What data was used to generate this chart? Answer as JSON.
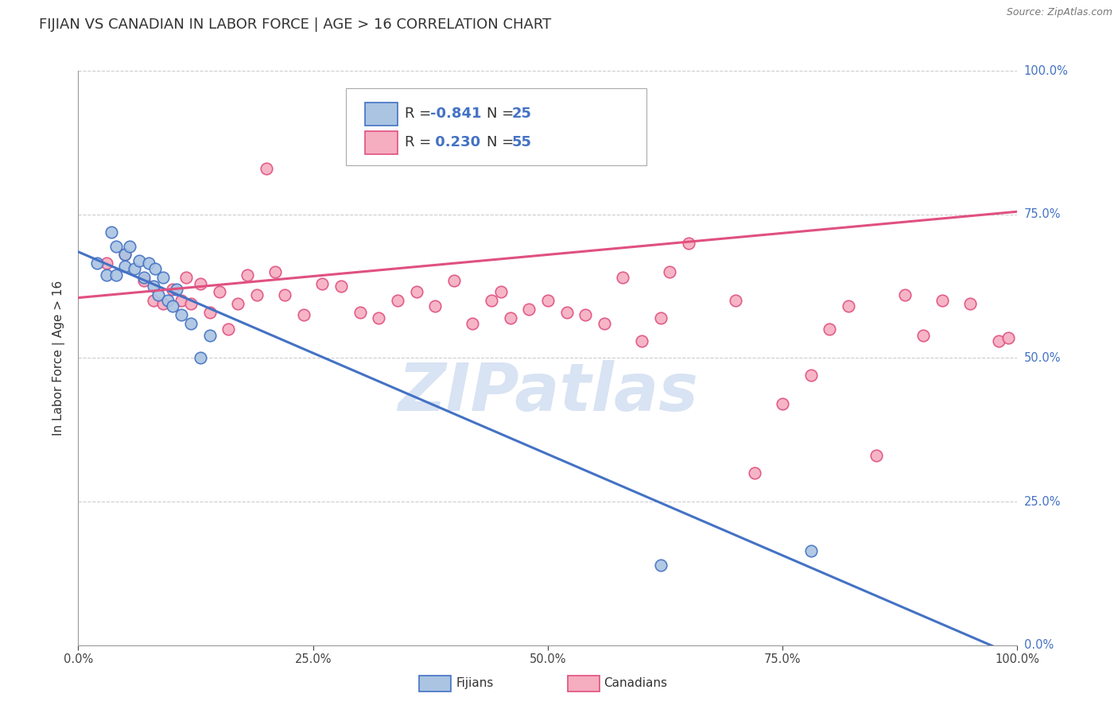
{
  "title": "FIJIAN VS CANADIAN IN LABOR FORCE | AGE > 16 CORRELATION CHART",
  "source_text": "Source: ZipAtlas.com",
  "ylabel": "In Labor Force | Age > 16",
  "watermark": "ZIPatlas",
  "xlim": [
    0.0,
    1.0
  ],
  "ylim": [
    0.0,
    1.0
  ],
  "xticks": [
    0.0,
    0.25,
    0.5,
    0.75,
    1.0
  ],
  "yticks": [
    0.0,
    0.25,
    0.5,
    0.75,
    1.0
  ],
  "ytick_labels_right": [
    "0.0%",
    "25.0%",
    "50.0%",
    "75.0%",
    "100.0%"
  ],
  "xtick_labels": [
    "0.0%",
    "25.0%",
    "50.0%",
    "75.0%",
    "100.0%"
  ],
  "fijian_color": "#aac4e2",
  "canadian_color": "#f5adc0",
  "fijian_line_color": "#4472c4",
  "canadian_line_color": "#e05080",
  "R_fijian": -0.841,
  "N_fijian": 25,
  "R_canadian": 0.23,
  "N_canadian": 55,
  "fijian_label": "Fijians",
  "canadian_label": "Canadians",
  "grid_color": "#cccccc",
  "background_color": "#ffffff",
  "fijian_scatter_x": [
    0.02,
    0.03,
    0.035,
    0.04,
    0.05,
    0.05,
    0.055,
    0.06,
    0.065,
    0.07,
    0.075,
    0.08,
    0.082,
    0.085,
    0.09,
    0.095,
    0.1,
    0.105,
    0.11,
    0.12,
    0.13,
    0.14,
    0.04,
    0.62,
    0.78
  ],
  "fijian_scatter_y": [
    0.665,
    0.645,
    0.72,
    0.695,
    0.68,
    0.66,
    0.695,
    0.655,
    0.67,
    0.64,
    0.665,
    0.625,
    0.655,
    0.61,
    0.64,
    0.6,
    0.59,
    0.62,
    0.575,
    0.56,
    0.5,
    0.54,
    0.645,
    0.14,
    0.165
  ],
  "canadian_scatter_x": [
    0.03,
    0.05,
    0.07,
    0.08,
    0.09,
    0.1,
    0.11,
    0.115,
    0.12,
    0.13,
    0.14,
    0.15,
    0.16,
    0.17,
    0.18,
    0.19,
    0.2,
    0.21,
    0.22,
    0.24,
    0.26,
    0.28,
    0.3,
    0.32,
    0.34,
    0.36,
    0.38,
    0.4,
    0.42,
    0.44,
    0.45,
    0.46,
    0.48,
    0.5,
    0.52,
    0.54,
    0.56,
    0.58,
    0.6,
    0.62,
    0.63,
    0.65,
    0.7,
    0.72,
    0.75,
    0.78,
    0.8,
    0.82,
    0.85,
    0.88,
    0.9,
    0.92,
    0.95,
    0.98,
    0.99
  ],
  "canadian_scatter_y": [
    0.665,
    0.68,
    0.635,
    0.6,
    0.595,
    0.62,
    0.6,
    0.64,
    0.595,
    0.63,
    0.58,
    0.615,
    0.55,
    0.595,
    0.645,
    0.61,
    0.83,
    0.65,
    0.61,
    0.575,
    0.63,
    0.625,
    0.58,
    0.57,
    0.6,
    0.615,
    0.59,
    0.635,
    0.56,
    0.6,
    0.615,
    0.57,
    0.585,
    0.6,
    0.58,
    0.575,
    0.56,
    0.64,
    0.53,
    0.57,
    0.65,
    0.7,
    0.6,
    0.3,
    0.42,
    0.47,
    0.55,
    0.59,
    0.33,
    0.61,
    0.54,
    0.6,
    0.595,
    0.53,
    0.535
  ],
  "fijian_trend_x": [
    0.0,
    1.0
  ],
  "fijian_trend_y": [
    0.685,
    -0.02
  ],
  "canadian_trend_x": [
    0.0,
    1.0
  ],
  "canadian_trend_y": [
    0.605,
    0.755
  ],
  "title_fontsize": 13,
  "axis_label_fontsize": 11,
  "tick_fontsize": 10.5,
  "legend_fontsize": 13,
  "watermark_fontsize": 60,
  "watermark_color": "#c8d8ee",
  "marker_size": 110,
  "marker_linewidth": 1.2,
  "line_width": 2.2
}
